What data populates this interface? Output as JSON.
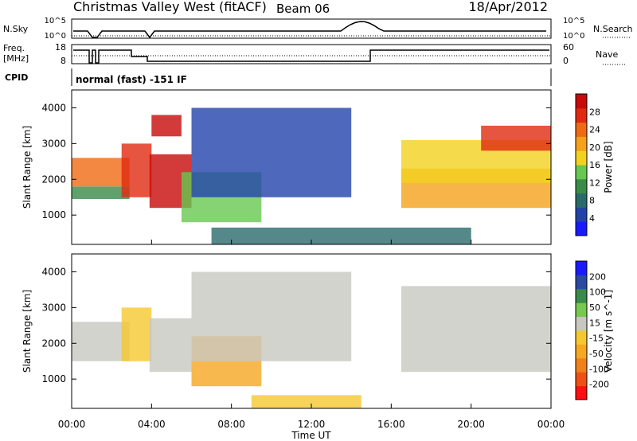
{
  "header": {
    "station": "Christmas Valley West (fitACF)",
    "beam": "Beam 06",
    "date": "18/Apr/2012"
  },
  "top_panels": {
    "nsky_label": "N.Sky",
    "nsky_ticks": [
      "10^5",
      "10^0"
    ],
    "nsearch_label": "N.Search",
    "nsearch_ticks": [
      "10^5",
      "10^0"
    ],
    "freq_label_1": "Freq.",
    "freq_label_2": "[MHz]",
    "freq_ticks": [
      "18",
      "8"
    ],
    "nave_label": "Nave",
    "nave_ticks": [
      "60",
      "0"
    ],
    "cpid_label": "CPID",
    "cpid_text": "normal (fast) -151 IF"
  },
  "colors": {
    "power_scale": [
      "#1a1aff",
      "#2244aa",
      "#2a6a6a",
      "#3a8a4a",
      "#66c850",
      "#f2d21e",
      "#f5a11a",
      "#f06a14",
      "#e02a10",
      "#c80a0a"
    ],
    "velocity_scale": [
      "#ff1010",
      "#f05014",
      "#f08018",
      "#f5a820",
      "#f5c830",
      "#c8c8c0",
      "#78c850",
      "#3a8a4a",
      "#2a4aa0",
      "#1a1aff"
    ]
  },
  "chart_data": [
    {
      "type": "heatmap",
      "panel": "power",
      "title": "Christmas Valley West (fitACF) Beam 06 18/Apr/2012",
      "xlabel": "Time UT",
      "ylabel": "Slant Range [km]",
      "x_ticks": [
        "00:00",
        "04:00",
        "08:00",
        "12:00",
        "16:00",
        "20:00",
        "00:00"
      ],
      "xlim_hours": [
        0,
        24
      ],
      "y_ticks": [
        "4000",
        "3000",
        "2000",
        "1000"
      ],
      "ylim_km": [
        180,
        4500
      ],
      "colorbar_label": "Power [dB]",
      "colorbar_ticks": [
        "28",
        "24",
        "20",
        "16",
        "12",
        "8",
        "4"
      ],
      "colorbar_range": [
        0,
        30
      ],
      "echo_regions": [
        {
          "t": [
            0.0,
            2.9
          ],
          "r": [
            1800,
            2600
          ],
          "value": 22
        },
        {
          "t": [
            0.0,
            2.9
          ],
          "r": [
            1450,
            1800
          ],
          "value": 10
        },
        {
          "t": [
            2.5,
            4.0
          ],
          "r": [
            1500,
            3000
          ],
          "value": 26
        },
        {
          "t": [
            3.9,
            6.0
          ],
          "r": [
            1200,
            2700
          ],
          "value": 30
        },
        {
          "t": [
            4.0,
            5.5
          ],
          "r": [
            3200,
            3800
          ],
          "value": 27
        },
        {
          "t": [
            5.5,
            9.5
          ],
          "r": [
            800,
            2200
          ],
          "value": 14
        },
        {
          "t": [
            6.0,
            14.0
          ],
          "r": [
            1500,
            4000
          ],
          "value": 5
        },
        {
          "t": [
            7.0,
            20.0
          ],
          "r": [
            180,
            650
          ],
          "value": 8
        },
        {
          "t": [
            16.5,
            24.0
          ],
          "r": [
            1200,
            2300
          ],
          "value": 18
        },
        {
          "t": [
            16.5,
            24.0
          ],
          "r": [
            1900,
            3100
          ],
          "value": 17
        },
        {
          "t": [
            20.5,
            24.0
          ],
          "r": [
            2800,
            3500
          ],
          "value": 26
        }
      ]
    },
    {
      "type": "heatmap",
      "panel": "velocity",
      "xlabel": "Time UT",
      "ylabel": "Slant Range [km]",
      "x_ticks": [
        "00:00",
        "04:00",
        "08:00",
        "12:00",
        "16:00",
        "20:00",
        "00:00"
      ],
      "xlim_hours": [
        0,
        24
      ],
      "y_ticks": [
        "4000",
        "3000",
        "2000",
        "1000"
      ],
      "ylim_km": [
        180,
        4500
      ],
      "colorbar_label": "Velocity [m s^-1]",
      "colorbar_ticks": [
        "200",
        "100",
        "50",
        "15",
        "-15",
        "-50",
        "-100",
        "-200"
      ],
      "colorbar_range": [
        -250,
        250
      ],
      "echo_regions": [
        {
          "t": [
            0.0,
            2.9
          ],
          "r": [
            1500,
            2600
          ],
          "value": 0
        },
        {
          "t": [
            2.5,
            4.0
          ],
          "r": [
            1500,
            3000
          ],
          "value": -45
        },
        {
          "t": [
            3.9,
            6.0
          ],
          "r": [
            1200,
            2700
          ],
          "value": 0
        },
        {
          "t": [
            6.0,
            9.5
          ],
          "r": [
            800,
            2200
          ],
          "value": -70
        },
        {
          "t": [
            6.0,
            14.0
          ],
          "r": [
            1500,
            4000
          ],
          "value": 0
        },
        {
          "t": [
            9.0,
            14.5
          ],
          "r": [
            180,
            550
          ],
          "value": -40
        },
        {
          "t": [
            16.5,
            24.0
          ],
          "r": [
            1200,
            3600
          ],
          "value": 0
        }
      ]
    }
  ]
}
